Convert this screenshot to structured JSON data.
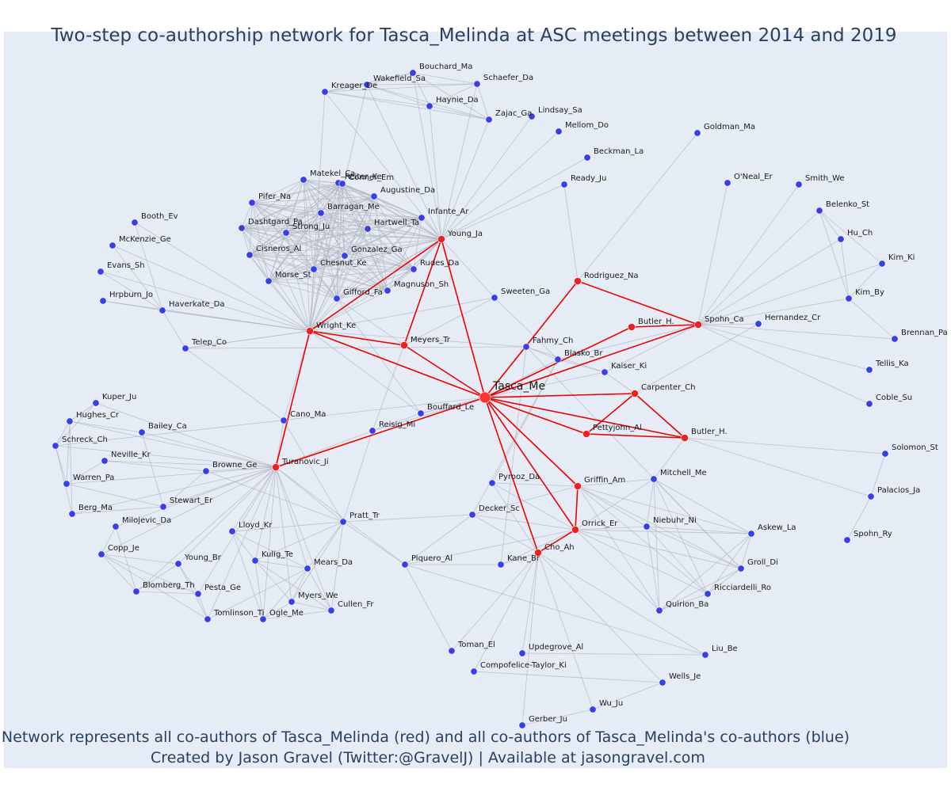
{
  "title": "Two-step co-authorship network for Tasca_Melinda at ASC meetings between 2014 and 2019",
  "caption_line1": "Network represents all co-authors of Tasca_Melinda (red) and all co-authors of Tasca_Melinda's co-authors (blue)",
  "caption_line2": "Created by Jason Gravel (Twitter:@GravelJ) | Available at jasongravel.com",
  "colors": {
    "background": "#e5ecf6",
    "ego": "#ff3333",
    "coauthor": "#ee2020",
    "second_step": "#3a3ee8",
    "ego_edge": "#ee0000",
    "other_edge": "#b0b3bd",
    "text": "#2a3f5f"
  },
  "network": {
    "ego": "Tasca_Me",
    "nodes": [
      {
        "id": "Tasca_Me",
        "group": "ego"
      },
      {
        "id": "Young_Ja",
        "group": "coauthor"
      },
      {
        "id": "Wright_Ke",
        "group": "coauthor"
      },
      {
        "id": "Meyers_Tr",
        "group": "coauthor"
      },
      {
        "id": "Rodriguez_Na",
        "group": "coauthor"
      },
      {
        "id": "Butler_H.",
        "group": "coauthor"
      },
      {
        "id": "Spohn_Ca",
        "group": "coauthor"
      },
      {
        "id": "Carpenter_Ch",
        "group": "coauthor"
      },
      {
        "id": "Pettyjohn_Al",
        "group": "coauthor"
      },
      {
        "id": "Butler_H.",
        "group": "coauthor"
      },
      {
        "id": "Griffin_Am",
        "group": "coauthor"
      },
      {
        "id": "Orrick_Er",
        "group": "coauthor"
      },
      {
        "id": "Cho_Ah",
        "group": "coauthor"
      },
      {
        "id": "Turanovic_Ji",
        "group": "coauthor"
      },
      {
        "id": "Bouchard_Ma",
        "group": "second"
      },
      {
        "id": "Wakefield_Sa",
        "group": "second"
      },
      {
        "id": "Schaefer_Da",
        "group": "second"
      },
      {
        "id": "Kreager_De",
        "group": "second"
      },
      {
        "id": "Haynie_Da",
        "group": "second"
      },
      {
        "id": "Zajac_Ga",
        "group": "second"
      },
      {
        "id": "Lindsay_Sa",
        "group": "second"
      },
      {
        "id": "Mellom_Do",
        "group": "second"
      },
      {
        "id": "Goldman_Ma",
        "group": "second"
      },
      {
        "id": "Beckman_La",
        "group": "second"
      },
      {
        "id": "Ready_Ju",
        "group": "second"
      },
      {
        "id": "O'Neal_Er",
        "group": "second"
      },
      {
        "id": "Smith_We",
        "group": "second"
      },
      {
        "id": "Belenko_St",
        "group": "second"
      },
      {
        "id": "Hu_Ch",
        "group": "second"
      },
      {
        "id": "Kim_Ki",
        "group": "second"
      },
      {
        "id": "Kim_By",
        "group": "second"
      },
      {
        "id": "Brennan_Pa",
        "group": "second"
      },
      {
        "id": "Tellis_Ka",
        "group": "second"
      },
      {
        "id": "Coble_Su",
        "group": "second"
      },
      {
        "id": "Hernandez_Cr",
        "group": "second"
      },
      {
        "id": "Reiter_Ke",
        "group": "second"
      },
      {
        "id": "Matekel_Ca",
        "group": "second"
      },
      {
        "id": "Conner_Em",
        "group": "second"
      },
      {
        "id": "Augustine_Da",
        "group": "second"
      },
      {
        "id": "Pifer_Na",
        "group": "second"
      },
      {
        "id": "Barragan_Me",
        "group": "second"
      },
      {
        "id": "Infante_Ar",
        "group": "second"
      },
      {
        "id": "Dashtgard_Pa",
        "group": "second"
      },
      {
        "id": "Hartwell_Ta",
        "group": "second"
      },
      {
        "id": "Strong_Ju",
        "group": "second"
      },
      {
        "id": "Booth_Ev",
        "group": "second"
      },
      {
        "id": "McKenzie_Ge",
        "group": "second"
      },
      {
        "id": "Cisneros_Al",
        "group": "second"
      },
      {
        "id": "Gonzalez_Ga",
        "group": "second"
      },
      {
        "id": "Chesnut_Ke",
        "group": "second"
      },
      {
        "id": "Rudes_Da",
        "group": "second"
      },
      {
        "id": "Evans_Sh",
        "group": "second"
      },
      {
        "id": "Morse_St",
        "group": "second"
      },
      {
        "id": "Magnuson_Sh",
        "group": "second"
      },
      {
        "id": "Gifford_Fa",
        "group": "second"
      },
      {
        "id": "Hrpburn_Jo",
        "group": "second"
      },
      {
        "id": "Haverkate_Da",
        "group": "second"
      },
      {
        "id": "Sweeten_Ga",
        "group": "second"
      },
      {
        "id": "Telep_Co",
        "group": "second"
      },
      {
        "id": "Fahmy_Ch",
        "group": "second"
      },
      {
        "id": "Blasko_Br",
        "group": "second"
      },
      {
        "id": "Kaiser_Ki",
        "group": "second"
      },
      {
        "id": "Kuper_Ju",
        "group": "second"
      },
      {
        "id": "Hughes_Cr",
        "group": "second"
      },
      {
        "id": "Bailey_Ca",
        "group": "second"
      },
      {
        "id": "Cano_Ma",
        "group": "second"
      },
      {
        "id": "Bouffard_Le",
        "group": "second"
      },
      {
        "id": "Reisig_Mi",
        "group": "second"
      },
      {
        "id": "Schreck_Ch",
        "group": "second"
      },
      {
        "id": "Neville_Kr",
        "group": "second"
      },
      {
        "id": "Browne_Ge",
        "group": "second"
      },
      {
        "id": "Warren_Pa",
        "group": "second"
      },
      {
        "id": "Stewart_Er",
        "group": "second"
      },
      {
        "id": "Berg_Ma",
        "group": "second"
      },
      {
        "id": "Milojevic_Da",
        "group": "second"
      },
      {
        "id": "Pratt_Tr",
        "group": "second"
      },
      {
        "id": "Pyrooz_Da",
        "group": "second"
      },
      {
        "id": "Mitchell_Me",
        "group": "second"
      },
      {
        "id": "Decker_Sc",
        "group": "second"
      },
      {
        "id": "Niebuhr_Ni",
        "group": "second"
      },
      {
        "id": "Lloyd_Kr",
        "group": "second"
      },
      {
        "id": "Copp_Je",
        "group": "second"
      },
      {
        "id": "Kulig_Te",
        "group": "second"
      },
      {
        "id": "Young_Br",
        "group": "second"
      },
      {
        "id": "Mears_Da",
        "group": "second"
      },
      {
        "id": "Piquero_Al",
        "group": "second"
      },
      {
        "id": "Kane_Br",
        "group": "second"
      },
      {
        "id": "Askew_La",
        "group": "second"
      },
      {
        "id": "Groll_Di",
        "group": "second"
      },
      {
        "id": "Ricciardelli_Ro",
        "group": "second"
      },
      {
        "id": "Quirion_Ba",
        "group": "second"
      },
      {
        "id": "Blomberg_Th",
        "group": "second"
      },
      {
        "id": "Pesta_Ge",
        "group": "second"
      },
      {
        "id": "Myers_We",
        "group": "second"
      },
      {
        "id": "Cullen_Fr",
        "group": "second"
      },
      {
        "id": "Ogle_Me",
        "group": "second"
      },
      {
        "id": "Tomlinson_Ti",
        "group": "second"
      },
      {
        "id": "Toman_El",
        "group": "second"
      },
      {
        "id": "Updegrove_Al",
        "group": "second"
      },
      {
        "id": "Compofelice-Taylor_Ki",
        "group": "second"
      },
      {
        "id": "Liu_Be",
        "group": "second"
      },
      {
        "id": "Wells_Je",
        "group": "second"
      },
      {
        "id": "Wu_Ju",
        "group": "second"
      },
      {
        "id": "Gerber_Ju",
        "group": "second"
      },
      {
        "id": "Solomon_St",
        "group": "second"
      },
      {
        "id": "Palacios_Ja",
        "group": "second"
      },
      {
        "id": "Spohn_Ry",
        "group": "second"
      }
    ]
  }
}
